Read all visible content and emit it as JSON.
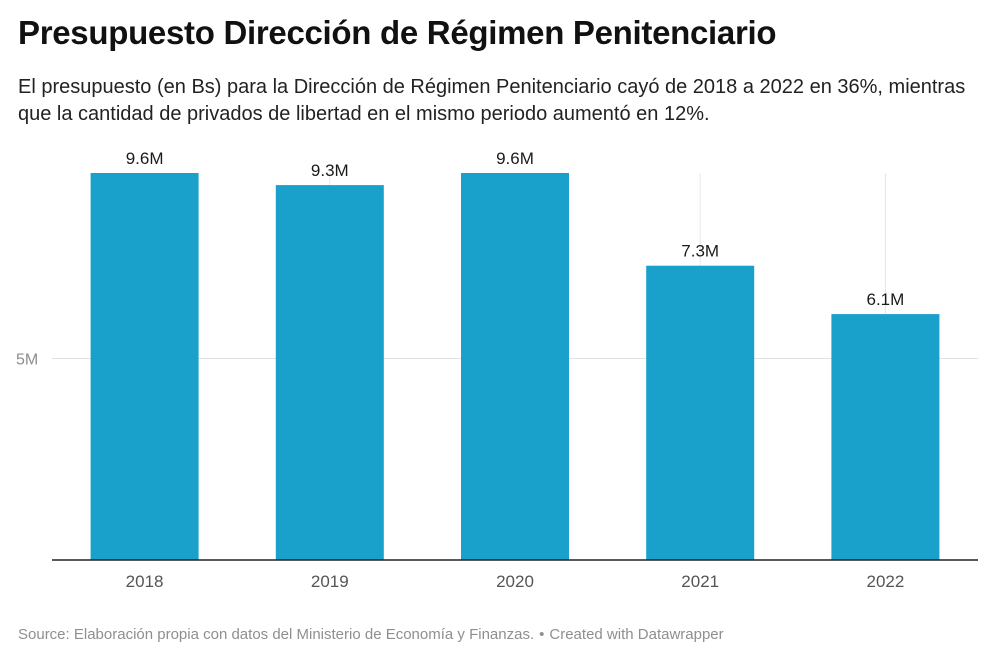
{
  "header": {
    "title": "Presupuesto Dirección de Régimen Penitenciario",
    "subtitle": "El presupuesto (en Bs) para la Dirección de Régimen Penitenciario cayó de 2018 a 2022 en 36%, mientras que la cantidad de privados de libertad en el mismo periodo aumentó en 12%."
  },
  "footer": {
    "source": "Source: Elaboración propia con datos del Ministerio de Economía y Finanzas.",
    "separator": "•",
    "credit": "Created with Datawrapper"
  },
  "chart_data": {
    "type": "bar",
    "title": "Presupuesto Dirección de Régimen Penitenciario",
    "xlabel": "",
    "ylabel": "",
    "categories": [
      "2018",
      "2019",
      "2020",
      "2021",
      "2022"
    ],
    "values": [
      9.6,
      9.3,
      9.6,
      7.3,
      6.1
    ],
    "value_labels": [
      "9.6M",
      "9.3M",
      "9.6M",
      "7.3M",
      "6.1M"
    ],
    "unit": "millones de Bs",
    "y_ticks": [
      {
        "value": 5,
        "label": "5M"
      }
    ],
    "ylim": [
      0,
      9.6
    ],
    "grid": true,
    "bar_color": "#19a1cc"
  }
}
